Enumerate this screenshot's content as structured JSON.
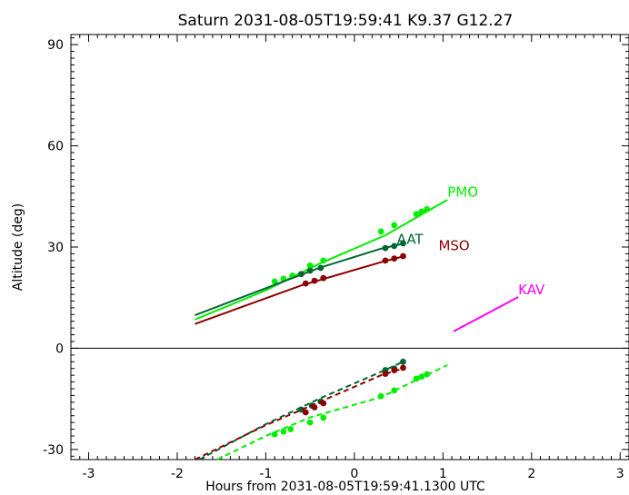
{
  "chart_data": {
    "type": "line",
    "title": "Saturn 2031-08-05T19:59:41  K9.37  G12.27",
    "xlabel": "Hours from 2031-08-05T19:59:41.1300 UTC",
    "ylabel": "Altitude (deg)",
    "xlim": [
      -3.2,
      3.1
    ],
    "ylim": [
      -33,
      93
    ],
    "xticks": [
      -3,
      -2,
      -1,
      0,
      1,
      2,
      3
    ],
    "yticks": [
      -30,
      0,
      30,
      60,
      90
    ],
    "xtick_labels": [
      "-3",
      "-2",
      "-1",
      "0",
      "1",
      "2",
      "3"
    ],
    "ytick_labels": [
      "-30",
      "0",
      "30",
      "60",
      "90"
    ],
    "zero_line": 0,
    "grid": false,
    "series": [
      {
        "name": "PMO",
        "color": "#00ee00",
        "label": {
          "x": 1.05,
          "y": 45
        },
        "line": [
          [
            -1.8,
            8.5
          ],
          [
            -1.0,
            17.2
          ],
          [
            -0.4,
            25.0
          ],
          [
            0.35,
            33.5
          ],
          [
            1.05,
            44.0
          ]
        ],
        "dash": [
          [
            -1.55,
            -33
          ],
          [
            -1.0,
            -26.0
          ],
          [
            -0.5,
            -20.5
          ],
          [
            0.3,
            -14.5
          ],
          [
            1.05,
            -5.0
          ]
        ],
        "markers": [
          [
            -0.9,
            19.8
          ],
          [
            -0.8,
            20.6
          ],
          [
            -0.7,
            21.5
          ],
          [
            -0.5,
            24.5
          ],
          [
            -0.35,
            26.0
          ],
          [
            0.3,
            34.6
          ],
          [
            0.45,
            36.5
          ],
          [
            0.7,
            39.8
          ],
          [
            0.76,
            40.5
          ],
          [
            0.82,
            41.2
          ],
          [
            -0.9,
            -25.5
          ],
          [
            -0.8,
            -24.7
          ],
          [
            -0.72,
            -24.0
          ],
          [
            -0.5,
            -22.0
          ],
          [
            -0.35,
            -20.6
          ],
          [
            0.3,
            -14.2
          ],
          [
            0.45,
            -12.5
          ],
          [
            0.7,
            -9.0
          ],
          [
            0.76,
            -8.4
          ],
          [
            0.82,
            -7.7
          ]
        ]
      },
      {
        "name": "AAT",
        "color": "#006633",
        "label": {
          "x": 0.48,
          "y": 31
        },
        "line": [
          [
            -1.8,
            9.8
          ],
          [
            -0.4,
            23.8
          ],
          [
            0.3,
            29.5
          ],
          [
            0.55,
            31.0
          ]
        ],
        "dash": [
          [
            -1.75,
            -33
          ],
          [
            -1.0,
            -22.5
          ],
          [
            -0.4,
            -15.0
          ],
          [
            0.3,
            -7.0
          ],
          [
            0.55,
            -4.0
          ]
        ],
        "markers": [
          [
            -0.6,
            22.0
          ],
          [
            -0.5,
            23.0
          ],
          [
            -0.38,
            23.8
          ],
          [
            0.35,
            29.7
          ],
          [
            0.45,
            30.3
          ],
          [
            0.55,
            31.1
          ],
          [
            -0.6,
            -18.2
          ],
          [
            -0.48,
            -17.0
          ],
          [
            -0.38,
            -15.8
          ],
          [
            0.35,
            -6.5
          ],
          [
            0.45,
            -6.0
          ],
          [
            0.55,
            -4.0
          ]
        ]
      },
      {
        "name": "MSO",
        "color": "#8b0000",
        "label": {
          "x": 0.95,
          "y": 29
        },
        "line": [
          [
            -1.8,
            7.2
          ],
          [
            -0.6,
            18.6
          ],
          [
            0.3,
            25.5
          ],
          [
            0.55,
            27.2
          ]
        ],
        "dash": [
          [
            -1.8,
            -33
          ],
          [
            -1.0,
            -22.8
          ],
          [
            -0.4,
            -16.0
          ],
          [
            0.3,
            -8.0
          ],
          [
            0.55,
            -6.0
          ]
        ],
        "markers": [
          [
            -0.55,
            19.2
          ],
          [
            -0.45,
            20.0
          ],
          [
            -0.35,
            20.8
          ],
          [
            0.35,
            26.0
          ],
          [
            0.45,
            26.6
          ],
          [
            0.55,
            27.3
          ],
          [
            -0.55,
            -19.0
          ],
          [
            -0.45,
            -17.5
          ],
          [
            -0.35,
            -16.3
          ],
          [
            0.35,
            -7.6
          ],
          [
            0.45,
            -6.5
          ],
          [
            0.55,
            -5.8
          ]
        ]
      },
      {
        "name": "KAV",
        "color": "#ff00ff",
        "label": {
          "x": 1.85,
          "y": 16
        },
        "line": [
          [
            1.12,
            5.0
          ],
          [
            1.85,
            15.2
          ]
        ],
        "dash": [],
        "markers": []
      }
    ]
  }
}
